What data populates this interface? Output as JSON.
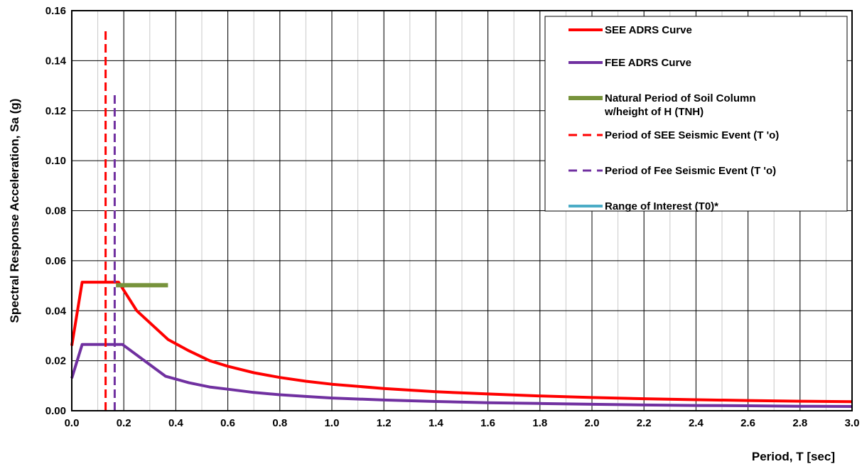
{
  "chart_data": {
    "type": "line",
    "xlabel": "Period, T [sec]",
    "ylabel": "Spectral Response Acceleration, Sa (g)",
    "xlim": [
      0,
      3.0
    ],
    "ylim": [
      0,
      0.16
    ],
    "x_ticks": [
      "0.0",
      "0.2",
      "0.4",
      "0.6",
      "0.8",
      "1.0",
      "1.2",
      "1.4",
      "1.6",
      "1.8",
      "2.0",
      "2.2",
      "2.4",
      "2.6",
      "2.8",
      "3.0"
    ],
    "y_ticks": [
      "0.00",
      "0.02",
      "0.04",
      "0.06",
      "0.08",
      "0.10",
      "0.12",
      "0.14",
      "0.16"
    ],
    "x_major_step": 0.2,
    "x_minor_step": 0.1,
    "y_major_step": 0.02,
    "grid": true,
    "legend_position": "top-right",
    "series": [
      {
        "name": "SEE ADRS Curve",
        "color": "#ff0000",
        "style": "solid",
        "points": [
          [
            0.0,
            0.026
          ],
          [
            0.04,
            0.0514
          ],
          [
            0.18,
            0.0514
          ],
          [
            0.25,
            0.04
          ],
          [
            0.37,
            0.0285
          ],
          [
            0.45,
            0.024
          ],
          [
            0.53,
            0.02
          ],
          [
            0.6,
            0.0178
          ],
          [
            0.7,
            0.0152
          ],
          [
            0.8,
            0.0133
          ],
          [
            0.9,
            0.0118
          ],
          [
            1.0,
            0.0106
          ],
          [
            1.2,
            0.0089
          ],
          [
            1.4,
            0.0076
          ],
          [
            1.6,
            0.0067
          ],
          [
            1.8,
            0.0059
          ],
          [
            2.0,
            0.0053
          ],
          [
            2.2,
            0.0048
          ],
          [
            2.4,
            0.0044
          ],
          [
            2.6,
            0.0041
          ],
          [
            2.8,
            0.0038
          ],
          [
            3.0,
            0.0036
          ]
        ]
      },
      {
        "name": "FEE ADRS Curve",
        "color": "#7030a0",
        "style": "solid",
        "points": [
          [
            0.0,
            0.013
          ],
          [
            0.04,
            0.0265
          ],
          [
            0.195,
            0.0265
          ],
          [
            0.36,
            0.0138
          ],
          [
            0.45,
            0.0112
          ],
          [
            0.53,
            0.0095
          ],
          [
            0.6,
            0.0086
          ],
          [
            0.7,
            0.0073
          ],
          [
            0.8,
            0.0064
          ],
          [
            0.9,
            0.0057
          ],
          [
            1.0,
            0.0051
          ],
          [
            1.2,
            0.0043
          ],
          [
            1.4,
            0.0037
          ],
          [
            1.6,
            0.0032
          ],
          [
            1.8,
            0.0029
          ],
          [
            2.0,
            0.0026
          ],
          [
            2.2,
            0.0023
          ],
          [
            2.4,
            0.0021
          ],
          [
            2.6,
            0.002
          ],
          [
            2.8,
            0.0018
          ],
          [
            3.0,
            0.0017
          ]
        ]
      },
      {
        "name": "Natural Period of Soil Column w/height of H (TNH)",
        "legend_lines": [
          "Natural Period of Soil Column",
          "w/height of H (TNH)"
        ],
        "color": "#77933c",
        "style": "solid-thick",
        "points": [
          [
            0.17,
            0.0502
          ],
          [
            0.37,
            0.0502
          ]
        ]
      },
      {
        "name": "Period of SEE Seismic Event (T 'o)",
        "color": "#ff0000",
        "style": "dashed",
        "points": [
          [
            0.13,
            0.0
          ],
          [
            0.13,
            0.152
          ]
        ]
      },
      {
        "name": "Period of Fee Seismic Event (T 'o)",
        "color": "#7030a0",
        "style": "dashed",
        "points": [
          [
            0.165,
            0.0
          ],
          [
            0.165,
            0.127
          ]
        ]
      },
      {
        "name": "Range of Interest (T0)*",
        "color": "#4bacc6",
        "style": "solid",
        "points": []
      }
    ]
  }
}
